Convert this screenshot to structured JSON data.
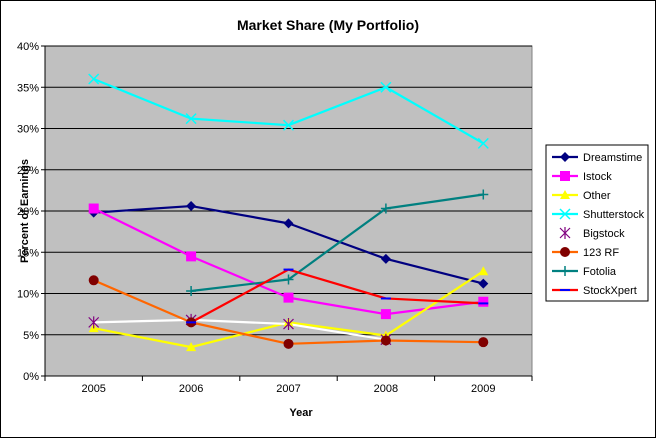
{
  "chart_data": {
    "type": "line",
    "title": "Market Share (My Portfolio)",
    "xlabel": "Year",
    "ylabel": "Percent of Earnings",
    "categories": [
      "2005",
      "2006",
      "2007",
      "2008",
      "2009"
    ],
    "ylim": [
      0,
      40
    ],
    "yticks": [
      "0%",
      "5%",
      "10%",
      "15%",
      "20%",
      "25%",
      "30%",
      "35%",
      "40%"
    ],
    "grid": true,
    "legend": "right",
    "series": [
      {
        "name": "Dreamstime",
        "color": "#000080",
        "marker": "diamond",
        "values": [
          19.8,
          20.6,
          18.5,
          14.2,
          11.2
        ]
      },
      {
        "name": "Istock",
        "color": "#ff00ff",
        "marker": "square",
        "values": [
          20.3,
          14.5,
          9.5,
          7.5,
          9.0
        ]
      },
      {
        "name": "Other",
        "color": "#ffff00",
        "marker": "triangle",
        "values": [
          5.8,
          3.5,
          6.5,
          4.9,
          12.7
        ]
      },
      {
        "name": "Shutterstock",
        "color": "#00ffff",
        "marker": "x",
        "values": [
          36.0,
          31.2,
          30.4,
          35.0,
          28.2
        ]
      },
      {
        "name": "Bigstock",
        "color": "#ffffff",
        "marker": "star",
        "legendMarkerColor": "#800080",
        "values": [
          6.5,
          6.8,
          6.3,
          4.4,
          null
        ]
      },
      {
        "name": "123 RF",
        "color": "#ff6600",
        "marker": "circle",
        "markerColor": "#800000",
        "values": [
          11.6,
          6.5,
          3.9,
          4.3,
          4.1
        ]
      },
      {
        "name": "Fotolia",
        "color": "#008080",
        "marker": "plus",
        "values": [
          null,
          10.3,
          11.7,
          20.3,
          22.0
        ]
      },
      {
        "name": "StockXpert",
        "color": "#ff0000",
        "marker": "dash",
        "legendMarkerColor": "#0000ff",
        "values": [
          null,
          6.5,
          12.9,
          9.4,
          8.8
        ]
      }
    ]
  }
}
